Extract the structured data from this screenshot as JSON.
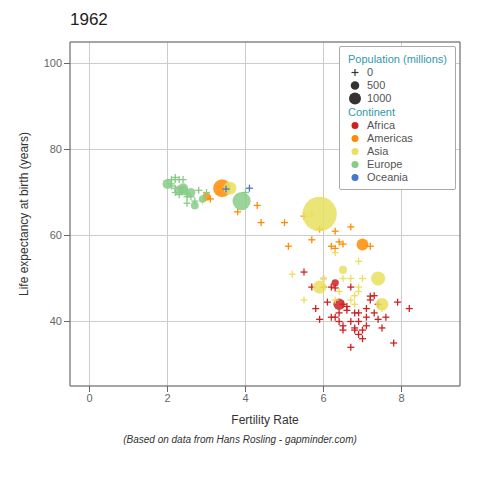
{
  "chart_data": {
    "type": "scatter",
    "title": "1962",
    "subtitle": "(Based on data from Hans Rosling - gapminder.com)",
    "xlabel": "Fertility Rate",
    "ylabel": "Life expectancy at birth (years)",
    "xlim": [
      -0.5,
      9.5
    ],
    "ylim": [
      25,
      105
    ],
    "xticks": [
      0,
      2,
      4,
      6,
      8
    ],
    "yticks": [
      40,
      60,
      80,
      100
    ],
    "grid": true,
    "legend": "upper right",
    "size_threshold": 30,
    "size_legend": {
      "title": "Population (millions)",
      "values": [
        0,
        500,
        1000
      ]
    },
    "legend_title": "Continent",
    "series": [
      {
        "name": "Africa",
        "color": "#cc2222",
        "x": [
          6.9,
          7.2,
          6.7,
          6.8,
          5.9,
          6.6,
          6.1,
          5.8,
          6.3,
          6.5,
          6.7,
          5.5,
          6.2,
          7.1,
          6.4,
          7.4,
          6.9,
          7.0,
          7.3,
          6.2,
          7.1,
          6.5,
          7.5,
          6.0,
          7.8,
          6.4,
          7.6,
          6.5,
          7.2,
          6.3,
          7.9,
          6.7,
          8.2,
          6.9,
          7.1,
          6.8,
          7.4,
          6.6,
          6.3,
          5.7,
          6.4,
          7.3,
          7.0,
          6.8
        ],
        "values": [
          42.0,
          45.9,
          34.0,
          38.0,
          40.5,
          42.6,
          44.5,
          43.0,
          47.8,
          38.0,
          40.0,
          51.5,
          41.0,
          39.0,
          44.0,
          40.5,
          37.0,
          36.0,
          42.0,
          48.0,
          43.0,
          39.0,
          38.5,
          50.0,
          35.0,
          40.0,
          41.0,
          44.0,
          45.0,
          49.0,
          44.5,
          48.0,
          43.0,
          40.0,
          41.0,
          38.5,
          44.0,
          43.5,
          41.0,
          48.0,
          42.0,
          46.0,
          38.0,
          42.0
        ],
        "size": [
          28,
          11,
          4,
          5,
          3,
          12,
          3,
          4,
          3,
          7,
          2,
          14,
          3,
          3,
          74,
          4,
          2,
          4,
          6,
          5,
          4,
          4,
          3,
          16,
          4,
          6,
          7,
          5,
          10,
          30,
          4,
          3,
          3,
          3,
          5,
          3,
          5,
          3,
          4,
          4,
          8,
          22,
          3,
          5
        ]
      },
      {
        "name": "Americas",
        "color": "#ff8c00",
        "x": [
          3.1,
          6.3,
          7.0,
          5.1,
          6.4,
          3.8,
          7.2,
          6.5,
          6.7,
          6.3,
          5.0,
          4.4,
          3.0,
          4.3,
          5.9,
          6.0,
          3.4,
          5.5,
          6.2,
          5.7
        ],
        "values": [
          68.5,
          57.0,
          57.9,
          57.5,
          58.5,
          65.5,
          57.5,
          58.0,
          62.0,
          61.0,
          63.0,
          63.0,
          69.0,
          67.0,
          61.5,
          48.0,
          71.0,
          64.5,
          57.5,
          59.0
        ],
        "size": [
          18,
          8,
          79,
          9,
          4,
          9,
          4,
          3,
          4,
          9,
          7,
          3,
          37,
          4,
          28,
          4,
          178,
          8,
          3,
          14
        ]
      },
      {
        "name": "Asia",
        "color": "#e8e060",
        "x": [
          6.8,
          7.4,
          6.3,
          5.9,
          6.9,
          5.2,
          5.5,
          3.6,
          6.0,
          5.9,
          7.5,
          7.0,
          6.3,
          6.7,
          6.8,
          5.7,
          6.9,
          7.5,
          6.5,
          6.7,
          6.5,
          6.4,
          2.9,
          6.9
        ],
        "values": [
          44.0,
          50.0,
          45.0,
          65.0,
          48.0,
          51.0,
          45.0,
          71.0,
          50.0,
          48.0,
          43.0,
          50.0,
          56.0,
          50.0,
          46.0,
          65.0,
          54.0,
          44.0,
          50.0,
          45.0,
          52.0,
          47.0,
          68.0,
          47.0
        ],
        "size": [
          5,
          112,
          8,
          665,
          11,
          4,
          7,
          94,
          9,
          98,
          4,
          10,
          22,
          3,
          8,
          26,
          19,
          89,
          7,
          5,
          37,
          3,
          29,
          13
        ]
      },
      {
        "name": "Europe",
        "color": "#88cc88",
        "x": [
          2.2,
          2.5,
          2.1,
          2.3,
          2.6,
          2.1,
          2.2,
          2.4,
          2.8,
          2.3,
          2.0,
          2.3,
          2.1,
          2.7,
          2.5,
          4.0,
          2.4,
          2.5,
          2.2,
          2.9,
          2.6,
          2.5,
          2.7,
          3.0,
          2.2,
          2.4,
          3.9
        ],
        "values": [
          70.0,
          69.5,
          71.5,
          70.5,
          70.0,
          72.0,
          71.0,
          71.0,
          70.5,
          73.0,
          72.0,
          69.5,
          73.0,
          68.0,
          70.0,
          70.0,
          70.5,
          69.0,
          73.5,
          68.5,
          69.0,
          67.5,
          67.0,
          70.0,
          73.0,
          73.0,
          68.0
        ],
        "size": [
          7,
          9,
          9,
          53,
          47,
          4,
          5,
          55,
          4,
          5,
          56,
          17,
          5,
          9,
          10,
          3,
          50,
          4,
          8,
          31,
          12,
          8,
          34,
          6,
          9,
          4,
          186
        ]
      },
      {
        "name": "Oceania",
        "color": "#4477cc",
        "x": [
          3.5,
          4.1
        ],
        "values": [
          70.8,
          71.0
        ],
        "size": [
          10,
          3
        ]
      }
    ]
  }
}
